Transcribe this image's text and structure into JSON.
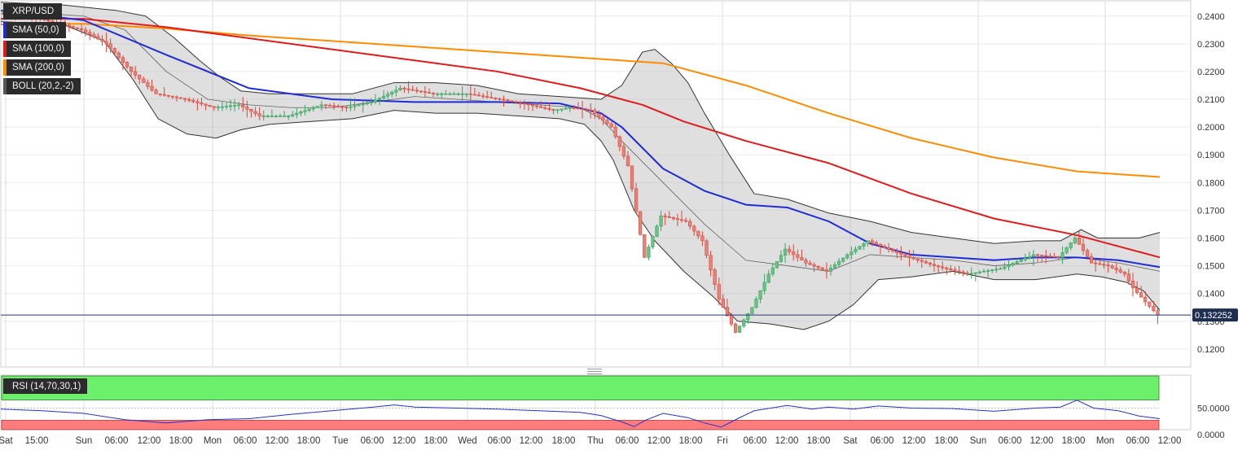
{
  "chart_data": {
    "type": "candlestick",
    "symbol": "XRP/USD",
    "last_price": "0.132252",
    "y_ticks": [
      "0.1200",
      "0.1300",
      "0.1400",
      "0.1500",
      "0.1600",
      "0.1700",
      "0.1800",
      "0.1900",
      "0.2000",
      "0.2100",
      "0.2200",
      "0.2300",
      "0.2400"
    ],
    "ylim": [
      0.1135,
      0.2455
    ],
    "x_ticks": [
      "Sat",
      "15:00",
      "Sun",
      "06:00",
      "12:00",
      "18:00",
      "Mon",
      "06:00",
      "12:00",
      "18:00",
      "Tue",
      "06:00",
      "12:00",
      "18:00",
      "Wed",
      "06:00",
      "12:00",
      "18:00",
      "Thu",
      "06:00",
      "12:00",
      "18:00",
      "Fri",
      "06:00",
      "12:00",
      "18:00",
      "Sat",
      "06:00",
      "12:00",
      "18:00",
      "Sun",
      "06:00",
      "12:00",
      "18:00",
      "Mon",
      "06:00",
      "12:00"
    ],
    "indicators": [
      {
        "label": "SMA (50,0)",
        "color": "#1f2bd6"
      },
      {
        "label": "SMA (100,0)",
        "color": "#e11b1b"
      },
      {
        "label": "SMA (200,0)",
        "color": "#ff8c00"
      },
      {
        "label": "BOLL (20,2,-2)",
        "color": "#222222"
      }
    ],
    "price_path": [
      [
        0,
        0.241
      ],
      [
        10,
        0.239
      ],
      [
        20,
        0.235
      ],
      [
        26,
        0.23
      ],
      [
        32,
        0.22
      ],
      [
        38,
        0.212
      ],
      [
        45,
        0.21
      ],
      [
        52,
        0.207
      ],
      [
        58,
        0.208
      ],
      [
        63,
        0.204
      ],
      [
        70,
        0.204
      ],
      [
        78,
        0.208
      ],
      [
        84,
        0.207
      ],
      [
        90,
        0.209
      ],
      [
        97,
        0.214
      ],
      [
        105,
        0.212
      ],
      [
        113,
        0.212
      ],
      [
        121,
        0.21
      ],
      [
        128,
        0.208
      ],
      [
        134,
        0.206
      ],
      [
        138,
        0.207
      ],
      [
        143,
        0.206
      ],
      [
        148,
        0.2
      ],
      [
        152,
        0.186
      ],
      [
        156,
        0.153
      ],
      [
        160,
        0.168
      ],
      [
        166,
        0.166
      ],
      [
        170,
        0.159
      ],
      [
        174,
        0.138
      ],
      [
        178,
        0.126
      ],
      [
        182,
        0.135
      ],
      [
        186,
        0.147
      ],
      [
        190,
        0.156
      ],
      [
        195,
        0.151
      ],
      [
        200,
        0.148
      ],
      [
        205,
        0.154
      ],
      [
        210,
        0.159
      ],
      [
        218,
        0.154
      ],
      [
        226,
        0.15
      ],
      [
        234,
        0.147
      ],
      [
        242,
        0.149
      ],
      [
        250,
        0.154
      ],
      [
        256,
        0.153
      ],
      [
        260,
        0.16
      ],
      [
        264,
        0.151
      ],
      [
        268,
        0.15
      ],
      [
        272,
        0.147
      ],
      [
        274,
        0.142
      ],
      [
        277,
        0.137
      ],
      [
        280,
        0.1322
      ]
    ],
    "sma50": [
      [
        0,
        0.242
      ],
      [
        20,
        0.2385
      ],
      [
        40,
        0.226
      ],
      [
        60,
        0.214
      ],
      [
        80,
        0.21
      ],
      [
        100,
        0.209
      ],
      [
        120,
        0.209
      ],
      [
        135,
        0.2085
      ],
      [
        145,
        0.205
      ],
      [
        150,
        0.2
      ],
      [
        160,
        0.185
      ],
      [
        170,
        0.177
      ],
      [
        180,
        0.172
      ],
      [
        190,
        0.171
      ],
      [
        200,
        0.166
      ],
      [
        210,
        0.158
      ],
      [
        220,
        0.154
      ],
      [
        230,
        0.153
      ],
      [
        240,
        0.152
      ],
      [
        250,
        0.153
      ],
      [
        260,
        0.153
      ],
      [
        270,
        0.152
      ],
      [
        280,
        0.1495
      ]
    ],
    "sma100": [
      [
        0,
        0.239
      ],
      [
        20,
        0.239
      ],
      [
        40,
        0.236
      ],
      [
        60,
        0.232
      ],
      [
        80,
        0.228
      ],
      [
        100,
        0.224
      ],
      [
        120,
        0.22
      ],
      [
        140,
        0.214
      ],
      [
        155,
        0.208
      ],
      [
        165,
        0.202
      ],
      [
        180,
        0.195
      ],
      [
        200,
        0.187
      ],
      [
        220,
        0.176
      ],
      [
        240,
        0.167
      ],
      [
        260,
        0.161
      ],
      [
        270,
        0.157
      ],
      [
        280,
        0.153
      ]
    ],
    "sma200": [
      [
        0,
        0.237
      ],
      [
        20,
        0.2372
      ],
      [
        40,
        0.2355
      ],
      [
        60,
        0.233
      ],
      [
        80,
        0.231
      ],
      [
        100,
        0.229
      ],
      [
        120,
        0.227
      ],
      [
        140,
        0.225
      ],
      [
        160,
        0.223
      ],
      [
        180,
        0.215
      ],
      [
        200,
        0.205
      ],
      [
        220,
        0.196
      ],
      [
        240,
        0.189
      ],
      [
        260,
        0.184
      ],
      [
        280,
        0.182
      ]
    ],
    "boll_upper": [
      [
        0,
        0.245
      ],
      [
        15,
        0.244
      ],
      [
        28,
        0.242
      ],
      [
        35,
        0.24
      ],
      [
        42,
        0.232
      ],
      [
        48,
        0.224
      ],
      [
        53,
        0.218
      ],
      [
        58,
        0.213
      ],
      [
        65,
        0.212
      ],
      [
        75,
        0.212
      ],
      [
        85,
        0.212
      ],
      [
        95,
        0.216
      ],
      [
        105,
        0.216
      ],
      [
        115,
        0.215
      ],
      [
        125,
        0.212
      ],
      [
        135,
        0.211
      ],
      [
        145,
        0.21
      ],
      [
        150,
        0.215
      ],
      [
        155,
        0.227
      ],
      [
        158,
        0.228
      ],
      [
        162,
        0.223
      ],
      [
        166,
        0.216
      ],
      [
        170,
        0.205
      ],
      [
        176,
        0.19
      ],
      [
        182,
        0.176
      ],
      [
        190,
        0.174
      ],
      [
        200,
        0.169
      ],
      [
        210,
        0.166
      ],
      [
        220,
        0.162
      ],
      [
        230,
        0.16
      ],
      [
        240,
        0.158
      ],
      [
        250,
        0.159
      ],
      [
        256,
        0.159
      ],
      [
        261,
        0.163
      ],
      [
        265,
        0.16
      ],
      [
        270,
        0.16
      ],
      [
        275,
        0.16
      ],
      [
        280,
        0.162
      ]
    ],
    "boll_lower": [
      [
        0,
        0.238
      ],
      [
        15,
        0.237
      ],
      [
        25,
        0.231
      ],
      [
        32,
        0.217
      ],
      [
        38,
        0.203
      ],
      [
        45,
        0.1975
      ],
      [
        52,
        0.196
      ],
      [
        58,
        0.199
      ],
      [
        65,
        0.201
      ],
      [
        75,
        0.202
      ],
      [
        85,
        0.203
      ],
      [
        95,
        0.206
      ],
      [
        105,
        0.205
      ],
      [
        115,
        0.205
      ],
      [
        125,
        0.204
      ],
      [
        135,
        0.203
      ],
      [
        141,
        0.201
      ],
      [
        145,
        0.195
      ],
      [
        148,
        0.188
      ],
      [
        153,
        0.17
      ],
      [
        158,
        0.159
      ],
      [
        165,
        0.148
      ],
      [
        172,
        0.139
      ],
      [
        178,
        0.13
      ],
      [
        186,
        0.129
      ],
      [
        194,
        0.127
      ],
      [
        200,
        0.13
      ],
      [
        206,
        0.136
      ],
      [
        212,
        0.145
      ],
      [
        220,
        0.146
      ],
      [
        230,
        0.148
      ],
      [
        240,
        0.145
      ],
      [
        250,
        0.145
      ],
      [
        260,
        0.147
      ],
      [
        266,
        0.146
      ],
      [
        272,
        0.144
      ],
      [
        276,
        0.141
      ],
      [
        280,
        0.134
      ]
    ],
    "boll_mid": [
      [
        0,
        0.242
      ],
      [
        20,
        0.24
      ],
      [
        30,
        0.235
      ],
      [
        40,
        0.22
      ],
      [
        50,
        0.21
      ],
      [
        60,
        0.208
      ],
      [
        70,
        0.207
      ],
      [
        80,
        0.207
      ],
      [
        90,
        0.209
      ],
      [
        100,
        0.211
      ],
      [
        110,
        0.21
      ],
      [
        120,
        0.209
      ],
      [
        130,
        0.208
      ],
      [
        140,
        0.207
      ],
      [
        145,
        0.203
      ],
      [
        150,
        0.195
      ],
      [
        160,
        0.18
      ],
      [
        170,
        0.165
      ],
      [
        180,
        0.152
      ],
      [
        190,
        0.15
      ],
      [
        200,
        0.148
      ],
      [
        210,
        0.154
      ],
      [
        220,
        0.153
      ],
      [
        230,
        0.152
      ],
      [
        240,
        0.15
      ],
      [
        250,
        0.151
      ],
      [
        260,
        0.153
      ],
      [
        270,
        0.151
      ],
      [
        280,
        0.148
      ]
    ],
    "rsi": {
      "label": "RSI (14,70,30,1)",
      "ylim": [
        0,
        100
      ],
      "y_ticks": [
        "0.0000",
        "50.0000"
      ],
      "values": [
        [
          0,
          48
        ],
        [
          10,
          45
        ],
        [
          20,
          40
        ],
        [
          30,
          28
        ],
        [
          40,
          22
        ],
        [
          50,
          28
        ],
        [
          60,
          30
        ],
        [
          70,
          38
        ],
        [
          80,
          45
        ],
        [
          90,
          52
        ],
        [
          95,
          56
        ],
        [
          100,
          52
        ],
        [
          110,
          50
        ],
        [
          120,
          48
        ],
        [
          130,
          45
        ],
        [
          140,
          42
        ],
        [
          145,
          36
        ],
        [
          150,
          24
        ],
        [
          153,
          15
        ],
        [
          156,
          28
        ],
        [
          160,
          40
        ],
        [
          166,
          32
        ],
        [
          170,
          22
        ],
        [
          174,
          14
        ],
        [
          178,
          30
        ],
        [
          182,
          45
        ],
        [
          186,
          50
        ],
        [
          190,
          55
        ],
        [
          196,
          48
        ],
        [
          200,
          52
        ],
        [
          206,
          48
        ],
        [
          212,
          54
        ],
        [
          220,
          50
        ],
        [
          230,
          49
        ],
        [
          240,
          44
        ],
        [
          250,
          50
        ],
        [
          256,
          52
        ],
        [
          260,
          65
        ],
        [
          264,
          50
        ],
        [
          270,
          45
        ],
        [
          275,
          35
        ],
        [
          280,
          30
        ]
      ],
      "overbought": 70,
      "oversold": 30
    }
  }
}
